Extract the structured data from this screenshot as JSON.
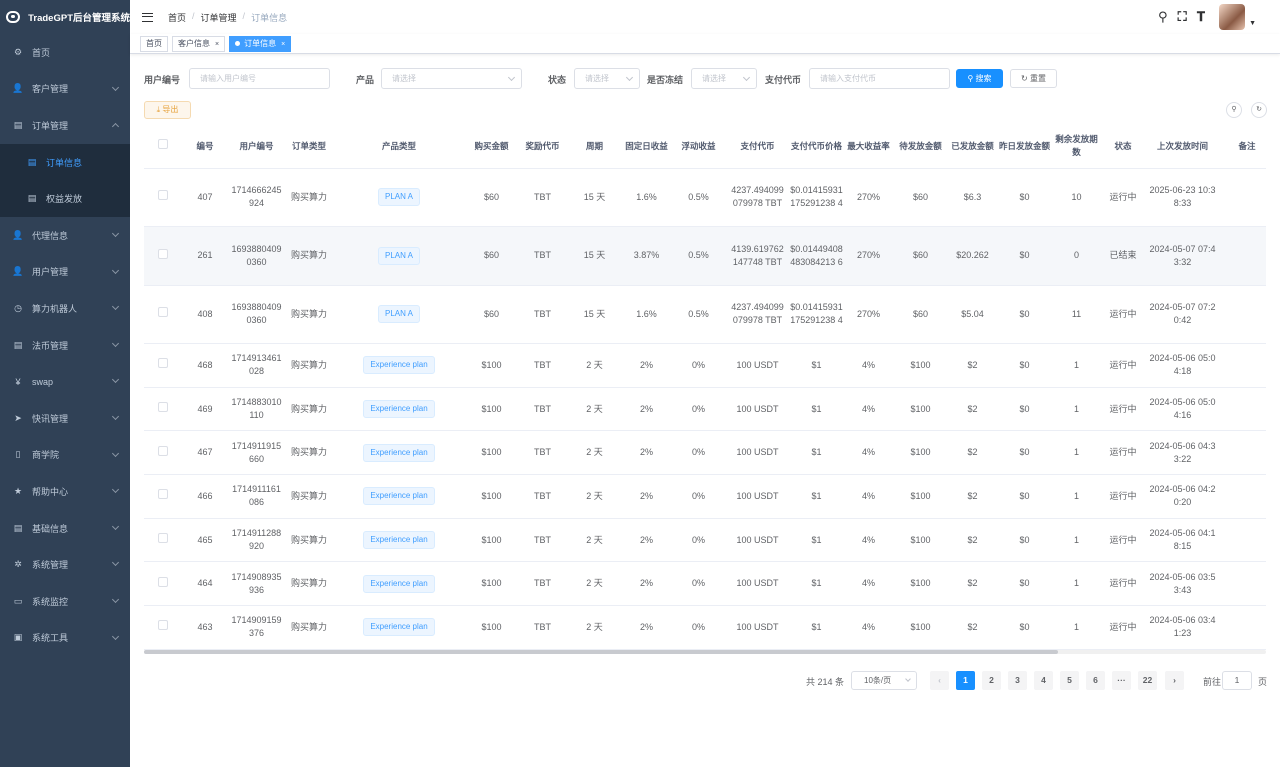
{
  "app": {
    "title": "TradeGPT后台管理系统"
  },
  "sidebar": {
    "items": [
      {
        "label": "首页",
        "icon": "dashboard-icon",
        "glyph": "⚙"
      },
      {
        "label": "客户管理",
        "icon": "user-icon",
        "glyph": "👤"
      },
      {
        "label": "订单管理",
        "icon": "document-icon",
        "glyph": "▤"
      },
      {
        "label": "代理信息",
        "icon": "user-icon",
        "glyph": "👤"
      },
      {
        "label": "用户管理",
        "icon": "user-icon",
        "glyph": "👤"
      },
      {
        "label": "算力机器人",
        "icon": "clock-icon",
        "glyph": "◷"
      },
      {
        "label": "法币管理",
        "icon": "document-icon",
        "glyph": "▤"
      },
      {
        "label": "swap",
        "icon": "yen-icon",
        "glyph": "¥"
      },
      {
        "label": "快讯管理",
        "icon": "send-icon",
        "glyph": "➤"
      },
      {
        "label": "商学院",
        "icon": "book-icon",
        "glyph": "▯"
      },
      {
        "label": "帮助中心",
        "icon": "star-icon",
        "glyph": "★"
      },
      {
        "label": "基础信息",
        "icon": "document-icon",
        "glyph": "▤"
      },
      {
        "label": "系统管理",
        "icon": "gear-icon",
        "glyph": "✲"
      },
      {
        "label": "系统监控",
        "icon": "monitor-icon",
        "glyph": "▭"
      },
      {
        "label": "系统工具",
        "icon": "toolbox-icon",
        "glyph": "▣"
      }
    ],
    "subitems": [
      {
        "label": "订单信息",
        "glyph": "▤"
      },
      {
        "label": "权益发放",
        "glyph": "▤"
      }
    ]
  },
  "breadcrumb": {
    "items": [
      "首页",
      "订单管理",
      "订单信息"
    ]
  },
  "tags": [
    {
      "label": "首页",
      "closable": false
    },
    {
      "label": "客户信息",
      "closable": true
    },
    {
      "label": "订单信息",
      "closable": true
    }
  ],
  "filters": {
    "user_id_label": "用户编号",
    "user_id_placeholder": "请输入用户编号",
    "product_label": "产品",
    "product_placeholder": "请选择",
    "status_label": "状态",
    "status_placeholder": "请选择",
    "frozen_label": "是否冻结",
    "frozen_placeholder": "请选择",
    "pay_token_label": "支付代币",
    "pay_token_placeholder": "请输入支付代币",
    "search_label": "搜索",
    "reset_label": "重置"
  },
  "toolbar": {
    "export_label": "导出"
  },
  "table": {
    "headers": [
      "编号",
      "用户编号",
      "订单类型",
      "产品类型",
      "购买金额",
      "奖励代币",
      "周期",
      "固定日收益",
      "浮动收益",
      "支付代币",
      "支付代币价格",
      "最大收益率",
      "待发放金额",
      "已发放金额",
      "昨日发放金额",
      "剩余发放期数",
      "状态",
      "上次发放时间",
      "备注"
    ],
    "rows": [
      [
        "407",
        "1714666245924",
        "购买算力",
        "PLAN A",
        "$60",
        "TBT",
        "15 天",
        "1.6%",
        "0.5%",
        "4237.494099079978 TBT",
        "$0.01415931175291238 4",
        "270%",
        "$60",
        "$6.3",
        "$0",
        "10",
        "运行中",
        "2025-06-23 10:38:33",
        ""
      ],
      [
        "261",
        "16938804090360",
        "购买算力",
        "PLAN A",
        "$60",
        "TBT",
        "15 天",
        "3.87%",
        "0.5%",
        "4139.619762147748 TBT",
        "$0.01449408483084213 6",
        "270%",
        "$60",
        "$20.262",
        "$0",
        "0",
        "已结束",
        "2024-05-07 07:43:32",
        ""
      ],
      [
        "408",
        "16938804090360",
        "购买算力",
        "PLAN A",
        "$60",
        "TBT",
        "15 天",
        "1.6%",
        "0.5%",
        "4237.494099079978 TBT",
        "$0.01415931175291238 4",
        "270%",
        "$60",
        "$5.04",
        "$0",
        "11",
        "运行中",
        "2024-05-07 07:20:42",
        ""
      ],
      [
        "468",
        "1714913461028",
        "购买算力",
        "Experience plan",
        "$100",
        "TBT",
        "2 天",
        "2%",
        "0%",
        "100 USDT",
        "$1",
        "4%",
        "$100",
        "$2",
        "$0",
        "1",
        "运行中",
        "2024-05-06 05:04:18",
        ""
      ],
      [
        "469",
        "1714883010110",
        "购买算力",
        "Experience plan",
        "$100",
        "TBT",
        "2 天",
        "2%",
        "0%",
        "100 USDT",
        "$1",
        "4%",
        "$100",
        "$2",
        "$0",
        "1",
        "运行中",
        "2024-05-06 05:04:16",
        ""
      ],
      [
        "467",
        "1714911915660",
        "购买算力",
        "Experience plan",
        "$100",
        "TBT",
        "2 天",
        "2%",
        "0%",
        "100 USDT",
        "$1",
        "4%",
        "$100",
        "$2",
        "$0",
        "1",
        "运行中",
        "2024-05-06 04:33:22",
        ""
      ],
      [
        "466",
        "1714911161086",
        "购买算力",
        "Experience plan",
        "$100",
        "TBT",
        "2 天",
        "2%",
        "0%",
        "100 USDT",
        "$1",
        "4%",
        "$100",
        "$2",
        "$0",
        "1",
        "运行中",
        "2024-05-06 04:20:20",
        ""
      ],
      [
        "465",
        "1714911288920",
        "购买算力",
        "Experience plan",
        "$100",
        "TBT",
        "2 天",
        "2%",
        "0%",
        "100 USDT",
        "$1",
        "4%",
        "$100",
        "$2",
        "$0",
        "1",
        "运行中",
        "2024-05-06 04:18:15",
        ""
      ],
      [
        "464",
        "1714908935936",
        "购买算力",
        "Experience plan",
        "$100",
        "TBT",
        "2 天",
        "2%",
        "0%",
        "100 USDT",
        "$1",
        "4%",
        "$100",
        "$2",
        "$0",
        "1",
        "运行中",
        "2024-05-06 03:53:43",
        ""
      ],
      [
        "463",
        "1714909159376",
        "购买算力",
        "Experience plan",
        "$100",
        "TBT",
        "2 天",
        "2%",
        "0%",
        "100 USDT",
        "$1",
        "4%",
        "$100",
        "$2",
        "$0",
        "1",
        "运行中",
        "2024-05-06 03:41:23",
        ""
      ]
    ]
  },
  "pagination": {
    "total_label": "共 214 条",
    "page_size": "10条/页",
    "pages": [
      "1",
      "2",
      "3",
      "4",
      "5",
      "6",
      "···",
      "22"
    ],
    "goto_label": "前往",
    "goto_value": "1",
    "page_unit": "页"
  }
}
